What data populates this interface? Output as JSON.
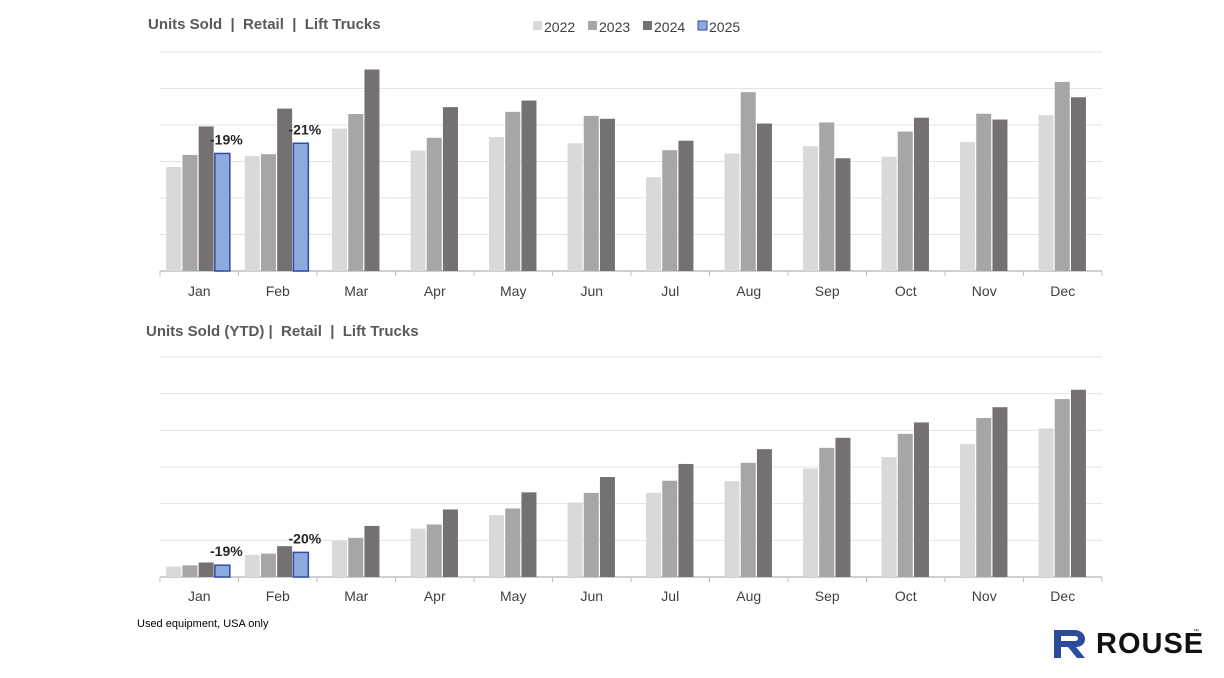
{
  "colors": {
    "s2022": "#d9d9d9",
    "s2023": "#a6a6a6",
    "s2024": "#767171",
    "s2025": "#8ea9db",
    "s2025_border": "#2f4ea6",
    "grid": "#e3e3e3",
    "axis": "#bfbfbf",
    "brand": "#2b4c9b"
  },
  "legend": [
    "2022",
    "2023",
    "2024",
    "2025"
  ],
  "footnote": "Used equipment, USA only",
  "logo": {
    "text": "ROUSE",
    "tm": "™",
    "icon": "rouse-logo-icon"
  },
  "chart_data": [
    {
      "type": "bar",
      "title": "Units Sold  |  Retail  |  Lift Trucks",
      "categories": [
        "Jan",
        "Feb",
        "Mar",
        "Apr",
        "May",
        "Jun",
        "Jul",
        "Aug",
        "Sep",
        "Oct",
        "Nov",
        "Dec"
      ],
      "ylim": [
        0,
        6000
      ],
      "grid": true,
      "legend_position": "top",
      "series": [
        {
          "name": "2022",
          "values": [
            2850,
            3150,
            3900,
            3300,
            3670,
            3500,
            2570,
            3220,
            3420,
            3130,
            3530,
            4270
          ]
        },
        {
          "name": "2023",
          "values": [
            3180,
            3200,
            4300,
            3650,
            4360,
            4250,
            3310,
            4900,
            4070,
            3820,
            4310,
            5180
          ]
        },
        {
          "name": "2024",
          "values": [
            3960,
            4450,
            5520,
            4490,
            4670,
            4170,
            3570,
            4040,
            3090,
            4200,
            4150,
            4760
          ]
        },
        {
          "name": "2025",
          "values": [
            3220,
            3500,
            null,
            null,
            null,
            null,
            null,
            null,
            null,
            null,
            null,
            null
          ]
        }
      ],
      "annotations": [
        {
          "category": "Jan",
          "series": "2025",
          "text": "-19%"
        },
        {
          "category": "Feb",
          "series": "2025",
          "text": "-21%"
        }
      ]
    },
    {
      "type": "bar",
      "title": "Units Sold (YTD) |  Retail  |  Lift Trucks",
      "categories": [
        "Jan",
        "Feb",
        "Mar",
        "Apr",
        "May",
        "Jun",
        "Jul",
        "Aug",
        "Sep",
        "Oct",
        "Nov",
        "Dec"
      ],
      "ylim": [
        0,
        60000
      ],
      "grid": true,
      "series": [
        {
          "name": "2022",
          "values": [
            2850,
            6000,
            9900,
            13200,
            16870,
            20370,
            22940,
            26160,
            29580,
            32710,
            36240,
            40510
          ]
        },
        {
          "name": "2023",
          "values": [
            3180,
            6380,
            10680,
            14330,
            18690,
            22940,
            26250,
            31150,
            35220,
            39040,
            43350,
            48530
          ]
        },
        {
          "name": "2024",
          "values": [
            3960,
            8410,
            13930,
            18420,
            23090,
            27260,
            30830,
            34870,
            37960,
            42160,
            46310,
            51070
          ]
        },
        {
          "name": "2025",
          "values": [
            3220,
            6720,
            null,
            null,
            null,
            null,
            null,
            null,
            null,
            null,
            null,
            null
          ]
        }
      ],
      "annotations": [
        {
          "category": "Jan",
          "series": "2025",
          "text": "-19%"
        },
        {
          "category": "Feb",
          "series": "2025",
          "text": "-20%"
        }
      ]
    }
  ]
}
